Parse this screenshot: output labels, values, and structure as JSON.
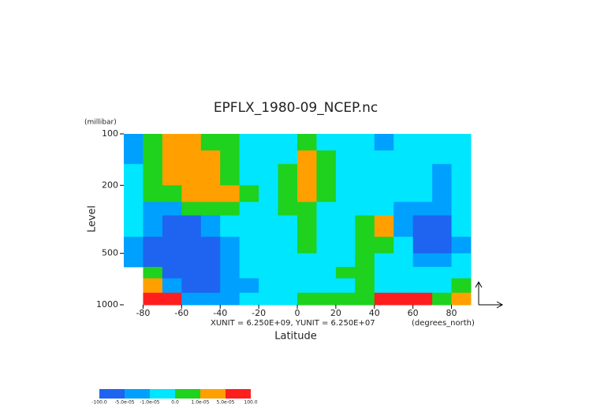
{
  "chart_data": {
    "type": "contour",
    "title": "EPFLX_1980-09_NCEP.nc",
    "y_unit_label": "(millibar)",
    "ylabel": "Level",
    "xlabel": "Latitude",
    "annotation": "XUNIT = 6.250E+09, YUNIT = 6.250E+07",
    "x_unit_label": "(degrees_north)",
    "xlim": [
      -90,
      90
    ],
    "xticks": [
      -80,
      -60,
      -40,
      -20,
      0,
      20,
      40,
      60,
      80
    ],
    "ylim": [
      1000,
      100
    ],
    "yscale": "log",
    "yticks": [
      100,
      200,
      500,
      1000
    ],
    "x_edges": [
      -90,
      -80,
      -70,
      -60,
      -50,
      -40,
      -30,
      -20,
      -10,
      0,
      10,
      20,
      30,
      40,
      50,
      60,
      70,
      80,
      90
    ],
    "y_edges": [
      100,
      125,
      150,
      200,
      250,
      300,
      400,
      500,
      600,
      700,
      850,
      1000
    ],
    "z": [
      [
        -3e-05,
        5e-06,
        3e-05,
        3e-05,
        5e-06,
        5e-06,
        -5e-06,
        -5e-06,
        -5e-06,
        5e-06,
        -5e-06,
        -5e-06,
        -5e-06,
        -3e-05,
        -5e-06,
        -5e-06,
        -5e-06,
        -5e-06
      ],
      [
        -3e-05,
        5e-06,
        3e-05,
        3e-05,
        3e-05,
        5e-06,
        -5e-06,
        -5e-06,
        -5e-06,
        3e-05,
        5e-06,
        -5e-06,
        -5e-06,
        -5e-06,
        -5e-06,
        -5e-06,
        -5e-06,
        -5e-06
      ],
      [
        -5e-06,
        5e-06,
        3e-05,
        3e-05,
        3e-05,
        5e-06,
        -5e-06,
        -5e-06,
        5e-06,
        3e-05,
        5e-06,
        -5e-06,
        -5e-06,
        -5e-06,
        -5e-06,
        -5e-06,
        -3e-05,
        -5e-06
      ],
      [
        -5e-06,
        5e-06,
        5e-06,
        3e-05,
        3e-05,
        3e-05,
        5e-06,
        -5e-06,
        5e-06,
        3e-05,
        5e-06,
        -5e-06,
        -5e-06,
        -5e-06,
        -5e-06,
        -5e-06,
        -3e-05,
        -5e-06
      ],
      [
        -5e-06,
        -3e-05,
        -3e-05,
        5e-06,
        5e-06,
        5e-06,
        -5e-06,
        -5e-06,
        5e-06,
        5e-06,
        -5e-06,
        -5e-06,
        -5e-06,
        -5e-06,
        -3e-05,
        -3e-05,
        -3e-05,
        -5e-06
      ],
      [
        -5e-06,
        -3e-05,
        -7e-05,
        -7e-05,
        -3e-05,
        -5e-06,
        -5e-06,
        -5e-06,
        -5e-06,
        5e-06,
        -5e-06,
        -5e-06,
        5e-06,
        3e-05,
        -3e-05,
        -7e-05,
        -7e-05,
        -5e-06
      ],
      [
        -3e-05,
        -7e-05,
        -7e-05,
        -7e-05,
        -7e-05,
        -3e-05,
        -5e-06,
        -5e-06,
        -5e-06,
        5e-06,
        -5e-06,
        -5e-06,
        5e-06,
        5e-06,
        -5e-06,
        -7e-05,
        -7e-05,
        -3e-05
      ],
      [
        -3e-05,
        -7e-05,
        -7e-05,
        -7e-05,
        -7e-05,
        -3e-05,
        -5e-06,
        -5e-06,
        -5e-06,
        -5e-06,
        -5e-06,
        -5e-06,
        5e-06,
        -5e-06,
        -5e-06,
        -3e-05,
        -3e-05,
        -5e-06
      ],
      [
        null,
        5e-06,
        -7e-05,
        -7e-05,
        -7e-05,
        -3e-05,
        -5e-06,
        -5e-06,
        -5e-06,
        -5e-06,
        -5e-06,
        5e-06,
        5e-06,
        -5e-06,
        -5e-06,
        -5e-06,
        -5e-06,
        -5e-06
      ],
      [
        null,
        3e-05,
        -3e-05,
        -7e-05,
        -7e-05,
        -3e-05,
        -3e-05,
        -5e-06,
        -5e-06,
        -5e-06,
        -5e-06,
        -5e-06,
        5e-06,
        -5e-06,
        -5e-06,
        -5e-06,
        -5e-06,
        5e-06
      ],
      [
        null,
        7e-05,
        7e-05,
        -3e-05,
        -3e-05,
        -3e-05,
        -5e-06,
        -5e-06,
        -5e-06,
        5e-06,
        5e-06,
        5e-06,
        5e-06,
        7e-05,
        7e-05,
        7e-05,
        5e-06,
        3e-05
      ]
    ],
    "levels": [
      {
        "value": -100,
        "label": "-100.0"
      },
      {
        "value": -5e-05,
        "label": "-5.0e-05"
      },
      {
        "value": -1e-05,
        "label": "-1.0e-05"
      },
      {
        "value": 0,
        "label": "0.0"
      },
      {
        "value": 1e-05,
        "label": "1.0e-05"
      },
      {
        "value": 5e-05,
        "label": "5.0e-05"
      },
      {
        "value": 100,
        "label": "100.0"
      }
    ],
    "colors": [
      "#1e64f0",
      "#00a0ff",
      "#00e6ff",
      "#1ed21e",
      "#ffa000",
      "#ff1e1e"
    ]
  }
}
